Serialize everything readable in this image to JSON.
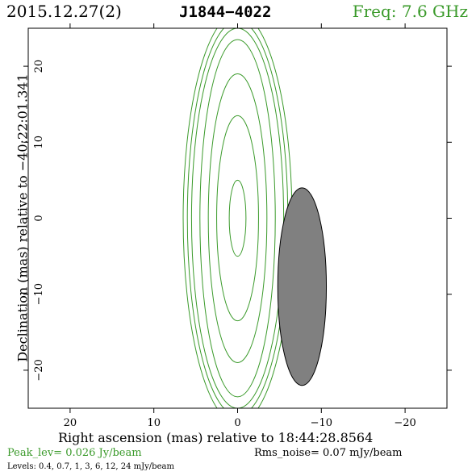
{
  "header": {
    "date": "2015.12.27(2)",
    "source": "J1844−4022",
    "frequency": "Freq: 7.6 GHz"
  },
  "axes": {
    "xlabel": "Right ascension (mas) relative to 18:44:28.8564",
    "ylabel": "Declination (mas) relative to −40:22:01.341",
    "x_range_mas": [
      25,
      -25
    ],
    "y_range_mas": [
      -25,
      25
    ],
    "x_ticks": [
      20,
      10,
      0,
      -10,
      -20
    ],
    "x_tick_labels": [
      "20",
      "10",
      "0",
      "−10",
      "−20"
    ],
    "y_ticks": [
      20,
      10,
      0,
      -10,
      -20
    ],
    "y_tick_labels": [
      "20",
      "10",
      "0",
      "−10",
      "−20"
    ]
  },
  "footer": {
    "peak": "Peak_lev=  0.026 Jy/beam",
    "rms": "Rms_noise= 0.07 mJy/beam",
    "levels": "Levels: 0.4, 0.7,   1,   3,   6,  12,  24 mJy/beam"
  },
  "contours": {
    "color": "#3a9a2a",
    "center_mas": [
      0,
      0
    ],
    "levels_mJy": [
      0.4,
      0.7,
      1,
      3,
      6,
      12,
      24
    ],
    "semi_axes_mas": [
      [
        6.5,
        27
      ],
      [
        6.0,
        26
      ],
      [
        5.5,
        25
      ],
      [
        4.5,
        23.5
      ],
      [
        3.5,
        19
      ],
      [
        2.5,
        13.5
      ],
      [
        1.0,
        5
      ]
    ]
  },
  "beam": {
    "color": "#808080",
    "center_mas": [
      -7.7,
      -9
    ],
    "semi_axes_mas": [
      2.9,
      13
    ]
  },
  "colors": {
    "header_freq": "#3a9a2a",
    "peak_text": "#3a9a2a"
  }
}
